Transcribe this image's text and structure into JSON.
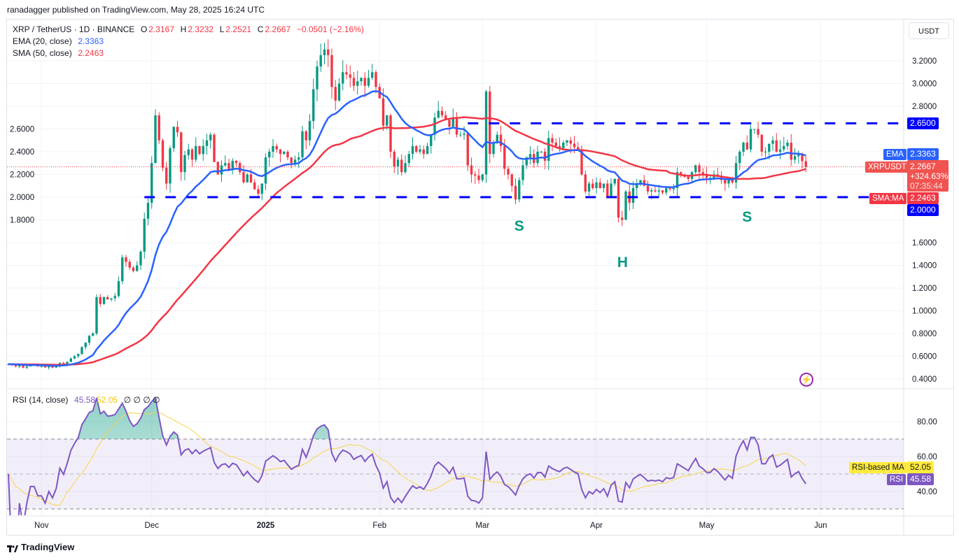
{
  "published": "ranadagger published on TradingView.com, May 28, 2025 16:24 UTC",
  "legend": {
    "symbol": "XRP / TetherUS · 1D · BINANCE",
    "o_label": "O",
    "o": "2.3167",
    "h_label": "H",
    "h": "2.3232",
    "l_label": "L",
    "l": "2.2521",
    "c_label": "C",
    "c": "2.2667",
    "change": "−0.0501 (−2.16%)",
    "ema_label": "EMA (20, close)",
    "ema_value": "2.3363",
    "sma_label": "SMA (50, close)",
    "sma_value": "2.2463",
    "rsi_label": "RSI (14, close)",
    "rsi_value": "45.58",
    "rsi_ma_value": "52.05",
    "rsi_extra": "∅ ∅ ∅ ∅"
  },
  "currency_button": "USDT",
  "price_tags": {
    "resistance": {
      "label": "2.6500",
      "color": "#0000ff"
    },
    "ema": {
      "name": "EMA",
      "value": "2.3363",
      "color": "#2962ff"
    },
    "last": {
      "name": "XRPUSDT",
      "value": "2.2667",
      "change": "+324.63%",
      "countdown": "07:35:44",
      "color": "#f05350"
    },
    "sma": {
      "name": "SMA:MA",
      "value": "2.2463",
      "color": "#f23645"
    },
    "support": {
      "label": "2.0000",
      "color": "#0000ff"
    }
  },
  "rsi_tags": {
    "ma": {
      "name": "RSI-based MA",
      "value": "52.05",
      "color": "#ffeb3b"
    },
    "rsi": {
      "name": "RSI",
      "value": "45.58",
      "color": "#7e57c2"
    }
  },
  "annotations": [
    {
      "text": "S",
      "day_index": 139,
      "price": 1.74
    },
    {
      "text": "H",
      "day_index": 167,
      "price": 1.42
    },
    {
      "text": "S",
      "day_index": 201,
      "price": 1.82
    }
  ],
  "logo_text": "TradingView",
  "chart_data": {
    "type": "candlestick",
    "symbol": "XRPUSDT",
    "interval": "1D",
    "first_date": "2024-10-23",
    "last_date": "2025-05-28",
    "y_ticks": [
      "3.2000",
      "3.0000",
      "2.8000",
      "2.6000",
      "2.4000",
      "2.2000",
      "2.0000",
      "1.8000",
      "1.6000",
      "1.4000",
      "1.2000",
      "1.0000",
      "0.8000",
      "0.6000",
      "0.4000"
    ],
    "ylim": [
      0.4,
      3.2
    ],
    "rsi_ticks": [
      "80.00",
      "60.00",
      "40.00"
    ],
    "rsi_bands": [
      30,
      50,
      70
    ],
    "horizontal_levels": [
      {
        "price": 2.65,
        "from_day": 125
      },
      {
        "price": 2.0,
        "from_day": 37
      }
    ],
    "time_labels": [
      {
        "label": "Nov",
        "day_index": 9
      },
      {
        "label": "Dec",
        "day_index": 39
      },
      {
        "label": "2025",
        "day_index": 70,
        "bold": true
      },
      {
        "label": "Feb",
        "day_index": 101
      },
      {
        "label": "Mar",
        "day_index": 129
      },
      {
        "label": "Apr",
        "day_index": 160
      },
      {
        "label": "May",
        "day_index": 190
      },
      {
        "label": "Jun",
        "day_index": 221
      }
    ],
    "indicators": {
      "ema_period": 20,
      "sma_period": 50,
      "rsi_period": 14,
      "rsi_ma_period": 14
    },
    "colors": {
      "up": "#089981",
      "down": "#f23645",
      "ema": "#2962ff",
      "sma": "#f23645",
      "rsi": "#7e57c2",
      "rsi_ma": "#f5d547",
      "level": "#0000ff"
    },
    "closes": [
      0.53,
      0.52,
      0.51,
      0.52,
      0.5,
      0.51,
      0.52,
      0.52,
      0.51,
      0.51,
      0.5,
      0.51,
      0.5,
      0.51,
      0.54,
      0.53,
      0.55,
      0.58,
      0.6,
      0.62,
      0.68,
      0.72,
      0.78,
      0.8,
      1.12,
      1.06,
      1.12,
      1.1,
      1.11,
      1.13,
      1.26,
      1.47,
      1.43,
      1.38,
      1.35,
      1.4,
      1.52,
      1.81,
      1.95,
      2.3,
      2.72,
      2.5,
      2.26,
      2.12,
      2.43,
      2.62,
      2.57,
      2.22,
      2.37,
      2.42,
      2.33,
      2.45,
      2.38,
      2.45,
      2.5,
      2.55,
      2.31,
      2.2,
      2.28,
      2.3,
      2.24,
      2.32,
      2.3,
      2.22,
      2.13,
      2.2,
      2.13,
      2.07,
      2.03,
      2.12,
      2.35,
      2.4,
      2.45,
      2.42,
      2.38,
      2.4,
      2.35,
      2.3,
      2.33,
      2.35,
      2.58,
      2.5,
      2.67,
      2.95,
      3.15,
      3.25,
      3.3,
      3.25,
      2.97,
      2.85,
      3.0,
      3.1,
      3.08,
      3.05,
      2.98,
      3.02,
      3.05,
      2.98,
      3.05,
      3.1,
      2.97,
      2.87,
      2.63,
      2.72,
      2.4,
      2.27,
      2.33,
      2.22,
      2.3,
      2.38,
      2.45,
      2.4,
      2.42,
      2.38,
      2.45,
      2.55,
      2.7,
      2.76,
      2.72,
      2.68,
      2.62,
      2.7,
      2.55,
      2.55,
      2.56,
      2.28,
      2.2,
      2.19,
      2.15,
      2.2,
      2.93,
      2.38,
      2.48,
      2.55,
      2.45,
      2.25,
      2.2,
      2.1,
      1.98,
      2.15,
      2.28,
      2.35,
      2.38,
      2.3,
      2.4,
      2.4,
      2.32,
      2.52,
      2.48,
      2.45,
      2.43,
      2.48,
      2.5,
      2.47,
      2.44,
      2.42,
      2.2,
      2.05,
      2.12,
      2.08,
      2.13,
      2.08,
      2.12,
      2.0,
      2.12,
      2.16,
      1.82,
      1.8,
      2.05,
      1.95,
      2.08,
      2.12,
      2.15,
      2.1,
      2.05,
      2.06,
      2.05,
      2.06,
      2.04,
      2.08,
      2.07,
      2.08,
      2.22,
      2.2,
      2.18,
      2.16,
      2.22,
      2.28,
      2.22,
      2.2,
      2.17,
      2.17,
      2.2,
      2.18,
      2.15,
      2.12,
      2.15,
      2.13,
      2.3,
      2.4,
      2.48,
      2.42,
      2.6,
      2.6,
      2.55,
      2.4,
      2.4,
      2.47,
      2.5,
      2.4,
      2.42,
      2.45,
      2.48,
      2.33,
      2.36,
      2.38,
      2.3167,
      2.2667
    ]
  }
}
